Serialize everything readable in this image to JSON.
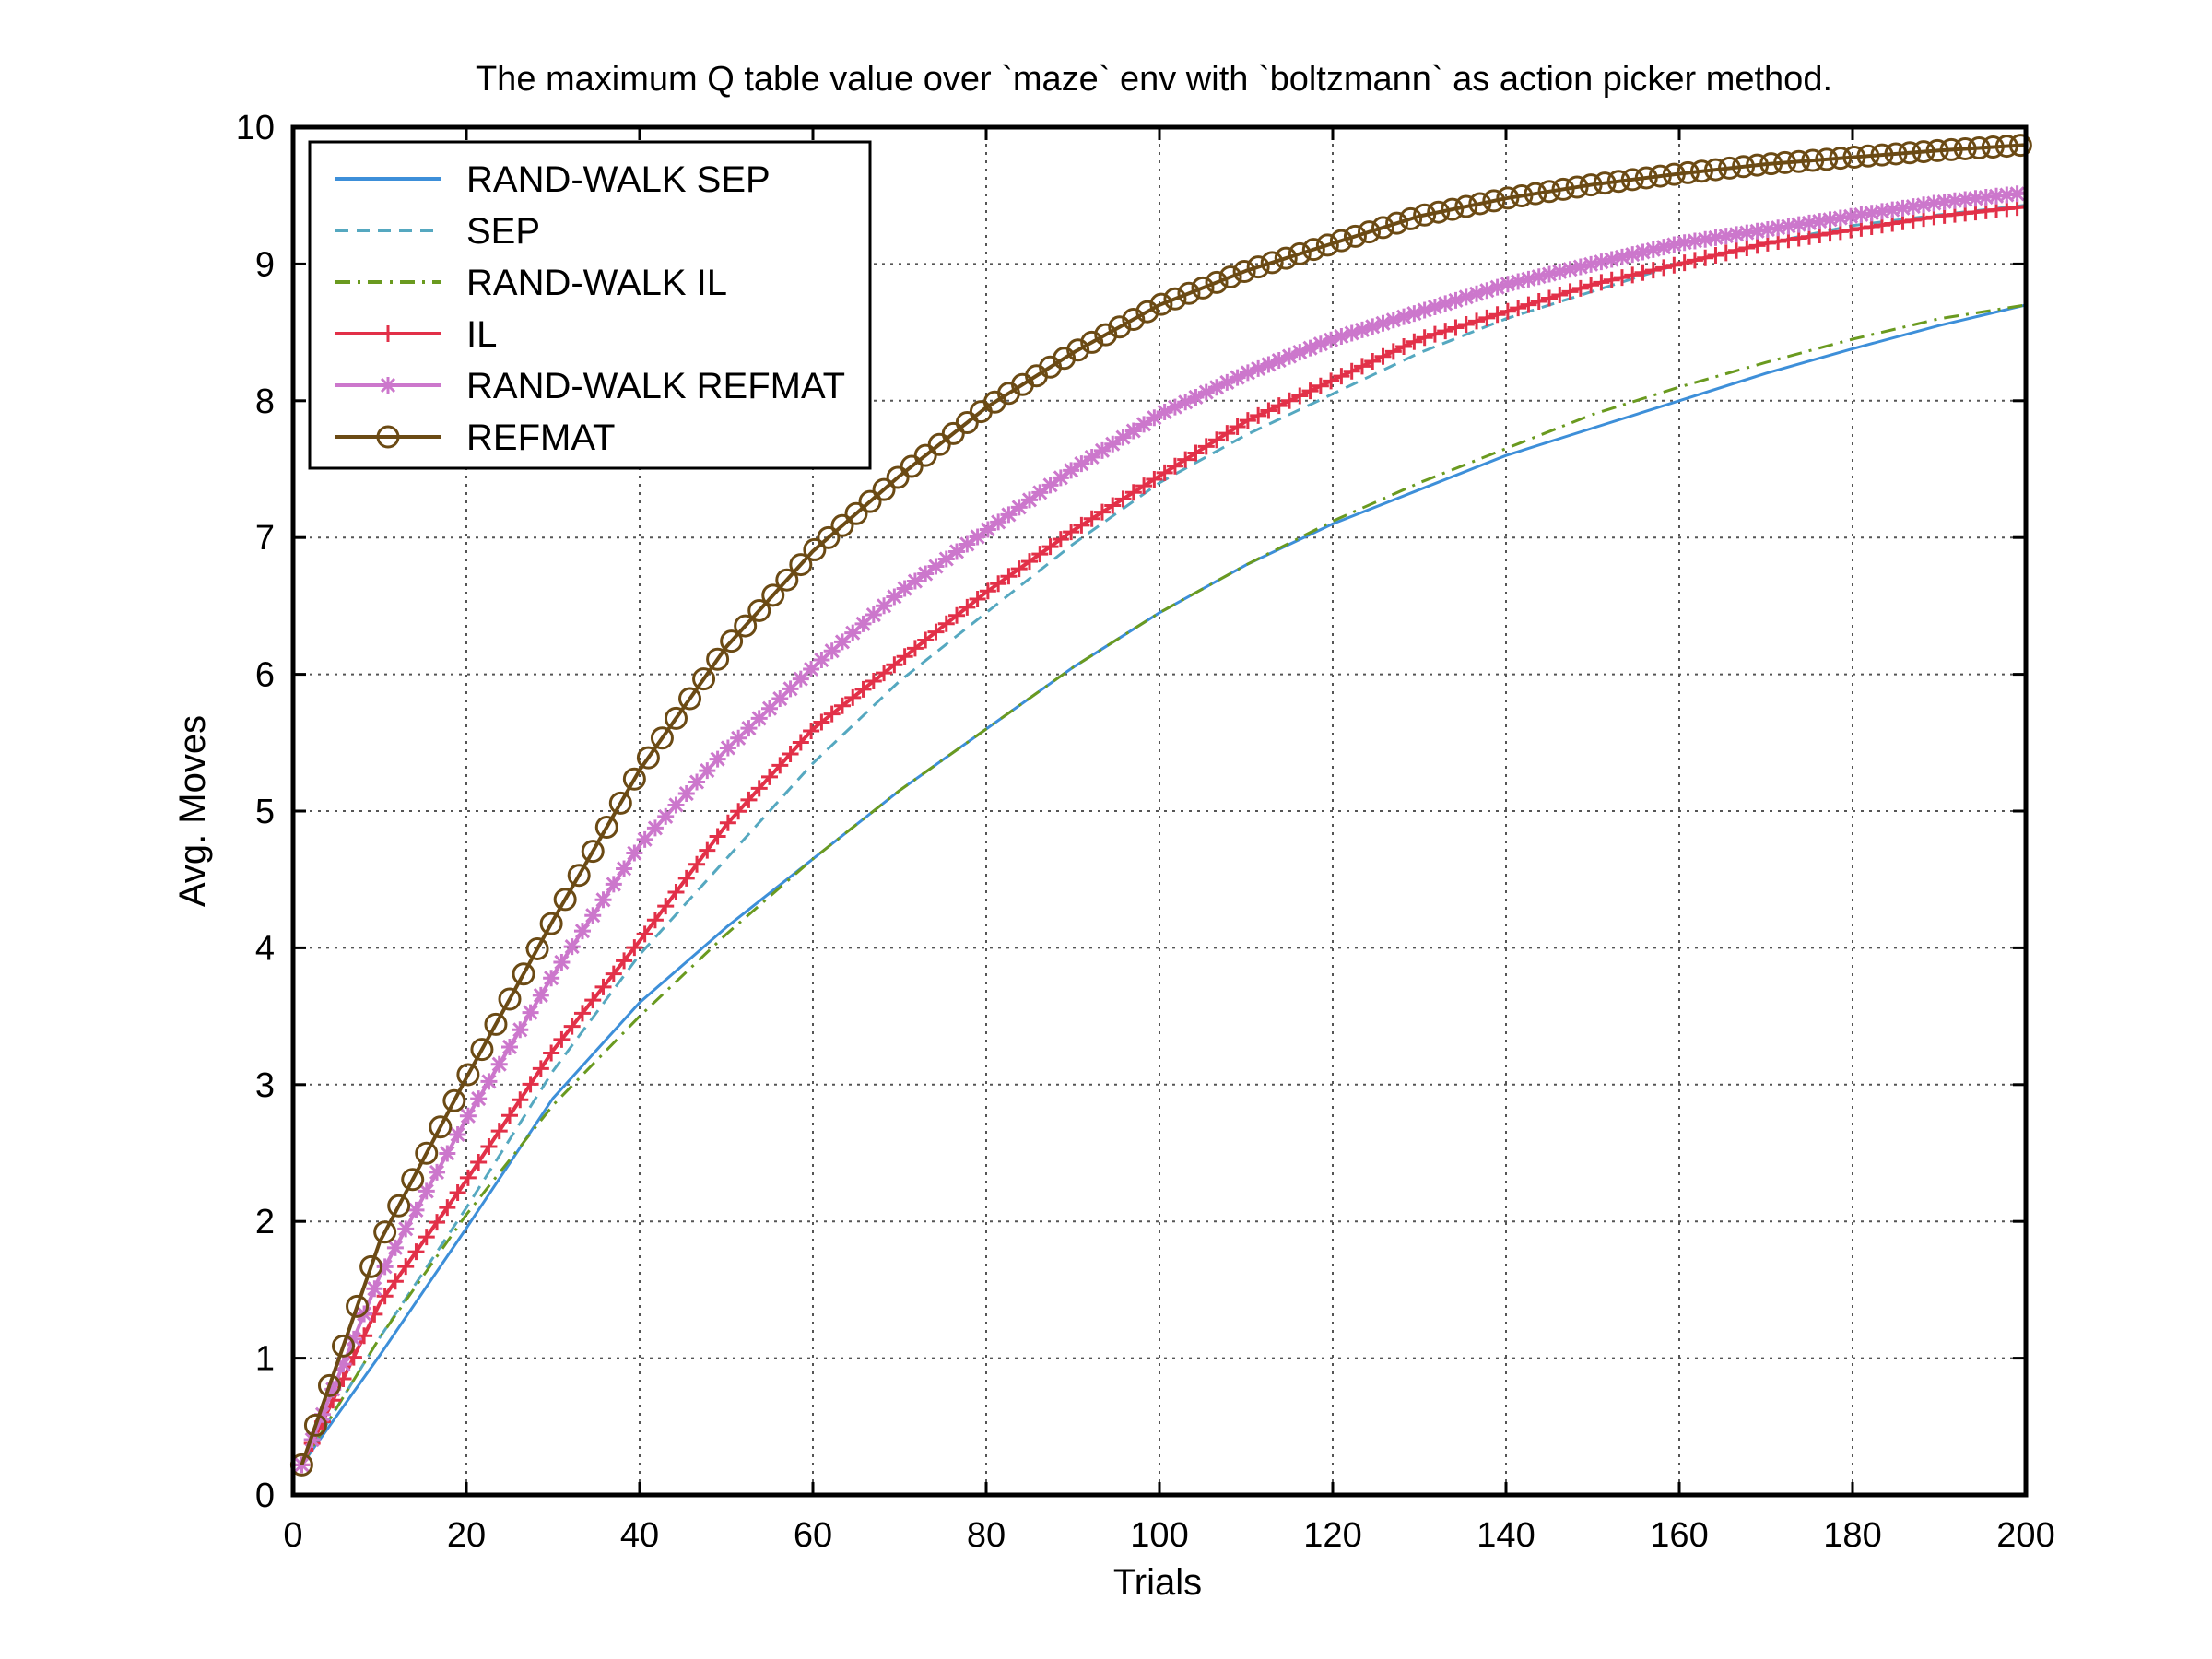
{
  "chart_data": {
    "type": "line",
    "title": "The maximum Q table value over `maze` env with `boltzmann` as action picker method.",
    "xlabel": "Trials",
    "ylabel": "Avg. Moves",
    "xlim": [
      0,
      200
    ],
    "ylim": [
      0,
      10
    ],
    "xticks": [
      "0",
      "20",
      "40",
      "60",
      "80",
      "100",
      "120",
      "140",
      "160",
      "180",
      "200"
    ],
    "yticks": [
      "0",
      "1",
      "2",
      "3",
      "4",
      "5",
      "6",
      "7",
      "8",
      "9",
      "10"
    ],
    "grid": true,
    "legend_position": "top-left",
    "x": [
      1,
      10,
      20,
      30,
      40,
      50,
      60,
      70,
      80,
      90,
      100,
      110,
      120,
      130,
      140,
      150,
      160,
      170,
      180,
      190,
      200
    ],
    "series": [
      {
        "name": "RAND-WALK SEP",
        "color": "#3d8fd9",
        "style": "solid",
        "marker": "none",
        "values": [
          0.22,
          1.02,
          1.95,
          2.9,
          3.6,
          4.15,
          4.65,
          5.15,
          5.6,
          6.05,
          6.45,
          6.8,
          7.1,
          7.35,
          7.6,
          7.8,
          8.0,
          8.2,
          8.38,
          8.55,
          8.7
        ]
      },
      {
        "name": "SEP",
        "color": "#55a8c0",
        "style": "dashed",
        "marker": "none",
        "values": [
          0.22,
          1.15,
          2.1,
          3.1,
          3.95,
          4.65,
          5.35,
          5.95,
          6.45,
          6.95,
          7.4,
          7.75,
          8.05,
          8.35,
          8.6,
          8.8,
          9.0,
          9.15,
          9.28,
          9.36,
          9.43
        ]
      },
      {
        "name": "RAND-WALK IL",
        "color": "#6a9a1f",
        "style": "dashdot",
        "marker": "none",
        "values": [
          0.22,
          1.15,
          2.05,
          2.85,
          3.5,
          4.1,
          4.65,
          5.15,
          5.6,
          6.05,
          6.45,
          6.8,
          7.12,
          7.4,
          7.65,
          7.9,
          8.1,
          8.28,
          8.45,
          8.6,
          8.7
        ]
      },
      {
        "name": "IL",
        "color": "#e23048",
        "style": "solid",
        "marker": "plus",
        "values": [
          0.22,
          1.4,
          2.3,
          3.25,
          4.05,
          4.9,
          5.6,
          6.1,
          6.6,
          7.05,
          7.45,
          7.85,
          8.15,
          8.45,
          8.65,
          8.85,
          9.0,
          9.15,
          9.25,
          9.35,
          9.42
        ]
      },
      {
        "name": "RAND-WALK REFMAT",
        "color": "#cc77cc",
        "style": "solid",
        "marker": "asterisk",
        "values": [
          0.22,
          1.6,
          2.75,
          3.8,
          4.75,
          5.45,
          6.05,
          6.6,
          7.05,
          7.5,
          7.9,
          8.2,
          8.45,
          8.65,
          8.85,
          9.0,
          9.15,
          9.25,
          9.35,
          9.45,
          9.52
        ]
      },
      {
        "name": "REFMAT",
        "color": "#6b4a14",
        "style": "solid",
        "marker": "circle",
        "values": [
          0.22,
          1.85,
          3.05,
          4.2,
          5.3,
          6.2,
          6.9,
          7.45,
          7.95,
          8.35,
          8.7,
          8.95,
          9.15,
          9.35,
          9.48,
          9.58,
          9.66,
          9.73,
          9.78,
          9.83,
          9.87
        ]
      }
    ]
  }
}
